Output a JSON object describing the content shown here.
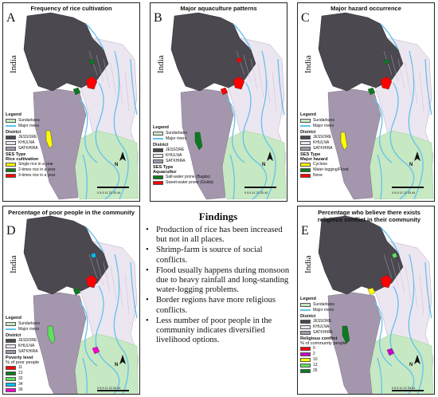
{
  "maps": {
    "common": {
      "country_label": "India",
      "legend_title": "Legend",
      "sundarbans": "Sundarbans",
      "major_rivers": "Major rivers",
      "district_title": "District",
      "jessore": "JESSORE",
      "khulna": "KHULNA",
      "satkhira": "SATKHIRA",
      "scale": "0 5.5 11 22 33 44",
      "north": "N",
      "colors": {
        "jessore": "#4b4850",
        "khulna": "#ece6f0",
        "satkhira": "#a497ad",
        "sundarbans": "#c6e8c2",
        "rivers": "#62c2ee"
      }
    },
    "a": {
      "letter": "A",
      "title": "Frequency of rice cultivation",
      "ses_type": "SES Type",
      "sub_title": "Rice cultivation",
      "items": [
        {
          "label": "Single rice in a year",
          "color": "#ffff00"
        },
        {
          "label": "2-times rice in a year",
          "color": "#0b7a1e"
        },
        {
          "label": "3-times rice in a year",
          "color": "#ff0000"
        }
      ]
    },
    "b": {
      "letter": "B",
      "title": "Major aquaculture patterns",
      "ses_type": "SES Type",
      "sub_title": "Aquacultur",
      "items": [
        {
          "label": "Salt-water prone (Bagda)",
          "color": "#0b7a1e"
        },
        {
          "label": "Sweet-water prone (Golda)",
          "color": "#ff0000"
        }
      ]
    },
    "c": {
      "letter": "C",
      "title": "Major hazard occurrence",
      "ses_type": "SES Type",
      "sub_title": "Major hazard",
      "items": [
        {
          "label": "Cyclone",
          "color": "#ffff00"
        },
        {
          "label": "Water logging/Flood",
          "color": "#0b7a1e"
        },
        {
          "label": "None",
          "color": "#ff0000"
        }
      ]
    },
    "d": {
      "letter": "D",
      "title": "Percentage of poor people in the community",
      "sub_title": "Poverty level",
      "sub_title2": "% of poor people",
      "items": [
        {
          "label": "11",
          "color": "#ff0000"
        },
        {
          "label": "21",
          "color": "#0b7a1e"
        },
        {
          "label": "32",
          "color": "#5fe05f"
        },
        {
          "label": "34",
          "color": "#00bdf0"
        },
        {
          "label": "36",
          "color": "#ff00cc"
        }
      ]
    },
    "e": {
      "letter": "E",
      "title": "Percentage who believe there exists religious conflict in their community",
      "sub_title": "Religious conflict",
      "sub_title2": "% of community people",
      "items": [
        {
          "label": "0",
          "color": "#ff0000"
        },
        {
          "label": "2",
          "color": "#cc00cc"
        },
        {
          "label": "10",
          "color": "#ffff00"
        },
        {
          "label": "13",
          "color": "#5fe05f"
        },
        {
          "label": "25",
          "color": "#0b7a1e"
        }
      ]
    }
  },
  "findings": {
    "title": "Findings",
    "items": [
      "Production of rice has been increased but not in all places.",
      "Shrimp-farm is source of social conflicts.",
      "Flood usually happens during monsoon due to heavy rainfall and long-standing water-logging problems.",
      "Border regions have more religious conflicts.",
      "Less number of poor people in the community indicates diversified livelihood options."
    ]
  }
}
